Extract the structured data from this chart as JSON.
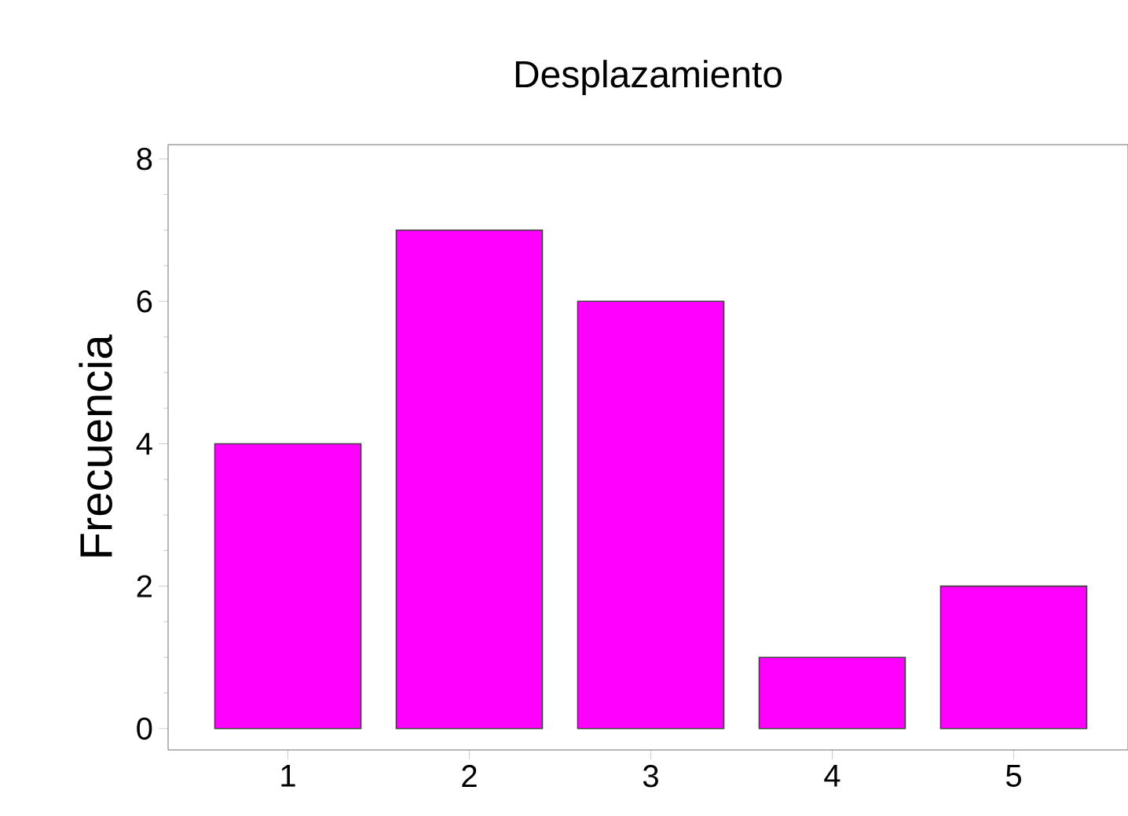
{
  "chart_data": {
    "type": "bar",
    "title": "Desplazamiento",
    "ylabel": "Frecuencia",
    "categories": [
      "1",
      "2",
      "3",
      "4",
      "5"
    ],
    "values": [
      4,
      7,
      6,
      1,
      2
    ],
    "color": "#ff00ff",
    "ylim": [
      -0.3,
      8.2
    ],
    "yticks": [
      0,
      2,
      4,
      6,
      8
    ],
    "grid": false
  }
}
